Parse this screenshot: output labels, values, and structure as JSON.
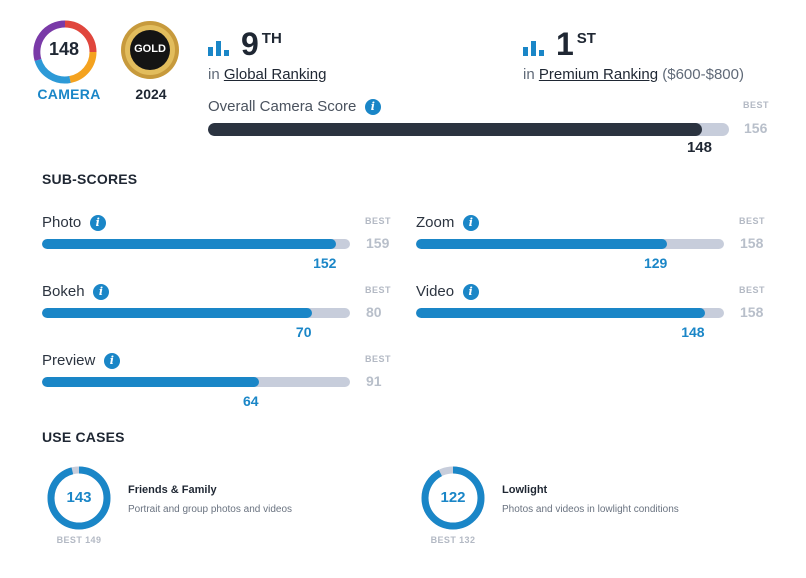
{
  "badge": {
    "score": "148",
    "label": "CAMERA"
  },
  "award": {
    "tier": "GOLD",
    "year": "2024"
  },
  "rankings": {
    "global": {
      "rank": "9",
      "suffix": "TH",
      "prefix": "in",
      "link": "Global Ranking"
    },
    "premium": {
      "rank": "1",
      "suffix": "ST",
      "prefix": "in",
      "link": "Premium Ranking",
      "range": "($600-$800)"
    }
  },
  "overall": {
    "label": "Overall Camera Score",
    "best_label": "BEST",
    "best_value": "156",
    "score": "148",
    "fraction": 0.9487
  },
  "subscores": {
    "title": "SUB-SCORES",
    "best_label": "BEST",
    "items": [
      {
        "label": "Photo",
        "score": "152",
        "best": "159",
        "fraction": 0.956
      },
      {
        "label": "Zoom",
        "score": "129",
        "best": "158",
        "fraction": 0.816
      },
      {
        "label": "Bokeh",
        "score": "70",
        "best": "80",
        "fraction": 0.875
      },
      {
        "label": "Video",
        "score": "148",
        "best": "158",
        "fraction": 0.937
      },
      {
        "label": "Preview",
        "score": "64",
        "best": "91",
        "fraction": 0.703
      }
    ]
  },
  "use_cases": {
    "title": "USE CASES",
    "items": [
      {
        "score": "143",
        "best": "BEST 149",
        "title": "Friends & Family",
        "desc": "Portrait and group photos and videos",
        "fraction": 0.96
      },
      {
        "score": "122",
        "best": "BEST 132",
        "title": "Lowlight",
        "desc": "Photos and videos in lowlight conditions",
        "fraction": 0.924
      }
    ]
  },
  "colors": {
    "accent": "#1a86c7",
    "overall_fill": "#2b3340",
    "track": "#c7cddb",
    "gold": "#c79a3c"
  },
  "icons": {
    "ranking": "bar-chart-icon",
    "info": "info-icon"
  }
}
